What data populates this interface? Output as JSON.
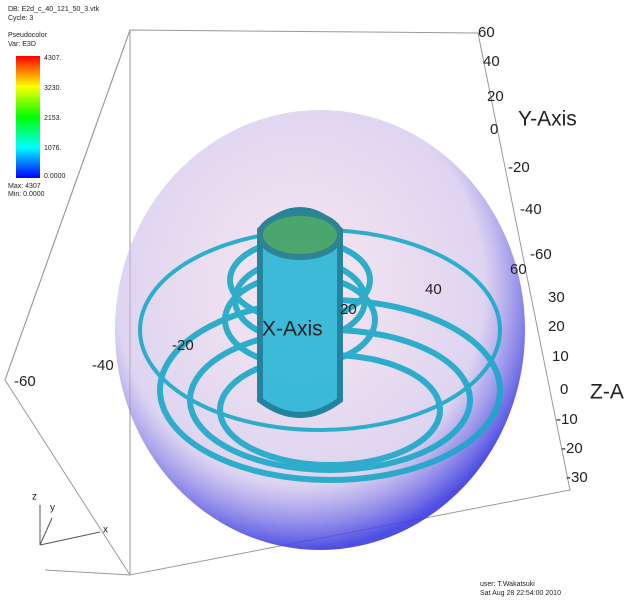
{
  "header": {
    "database": "DB: E2d_c_40_121_50_3.vtk",
    "cycle": "Cycle: 3"
  },
  "legend": {
    "plot": "Pseudocolor",
    "variable": "Var: E3D",
    "labels": [
      "4307.",
      "3230.",
      "2153.",
      "1076.",
      "0.0000"
    ],
    "max": "Max: 4307",
    "min": "Min: 0.0000"
  },
  "axes": {
    "y": {
      "title": "Y-Axis",
      "ticks": [
        60,
        40,
        20,
        0,
        -20,
        -40,
        -60
      ]
    },
    "z": {
      "title": "Z-A",
      "ticks": [
        30,
        20,
        10,
        0,
        -10,
        -20,
        -30
      ]
    },
    "x": {
      "title": "X-Axis",
      "ticks": [
        -60,
        -40,
        -20,
        20,
        40,
        60
      ]
    }
  },
  "triad": {
    "z": "z",
    "y": "y",
    "x": "x"
  },
  "footer": {
    "user": "user: T.Wakatsuki",
    "date": "Sat Aug 28 22:54:00 2010"
  }
}
